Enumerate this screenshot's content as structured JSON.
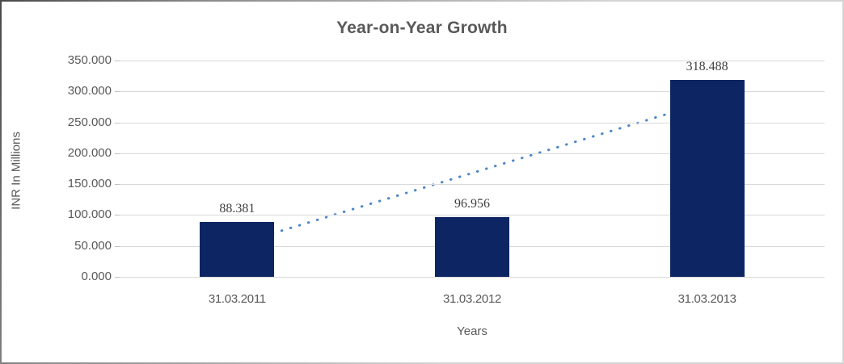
{
  "chart_data": {
    "type": "bar",
    "title": "Year-on-Year Growth",
    "categories": [
      "31.03.2011",
      "31.03.2012",
      "31.03.2013"
    ],
    "values": [
      88.381,
      96.956,
      318.488
    ],
    "data_labels": [
      "88.381",
      "96.956",
      "318.488"
    ],
    "xlabel": "Years",
    "ylabel": "INR In Millions",
    "ylim": [
      0,
      350
    ],
    "ytick_step": 50,
    "yticks": [
      {
        "value": 0,
        "label": "0.000"
      },
      {
        "value": 50,
        "label": "50.000"
      },
      {
        "value": 100,
        "label": "100.000"
      },
      {
        "value": 150,
        "label": "150.000"
      },
      {
        "value": 200,
        "label": "200.000"
      },
      {
        "value": 250,
        "label": "250.000"
      },
      {
        "value": 300,
        "label": "300.000"
      },
      {
        "value": 350,
        "label": "350.000"
      }
    ],
    "grid": true,
    "legend": false,
    "trendline": {
      "type": "linear",
      "style": "dotted",
      "color": "#4a86c8"
    },
    "colors": {
      "bar": "#0d2663",
      "gridline": "#d9d9d9",
      "tick": "#bfbfbf",
      "axis_text": "#595959",
      "title_text": "#595959",
      "data_label_text": "#3f3f3f",
      "background": "#ffffff"
    }
  }
}
